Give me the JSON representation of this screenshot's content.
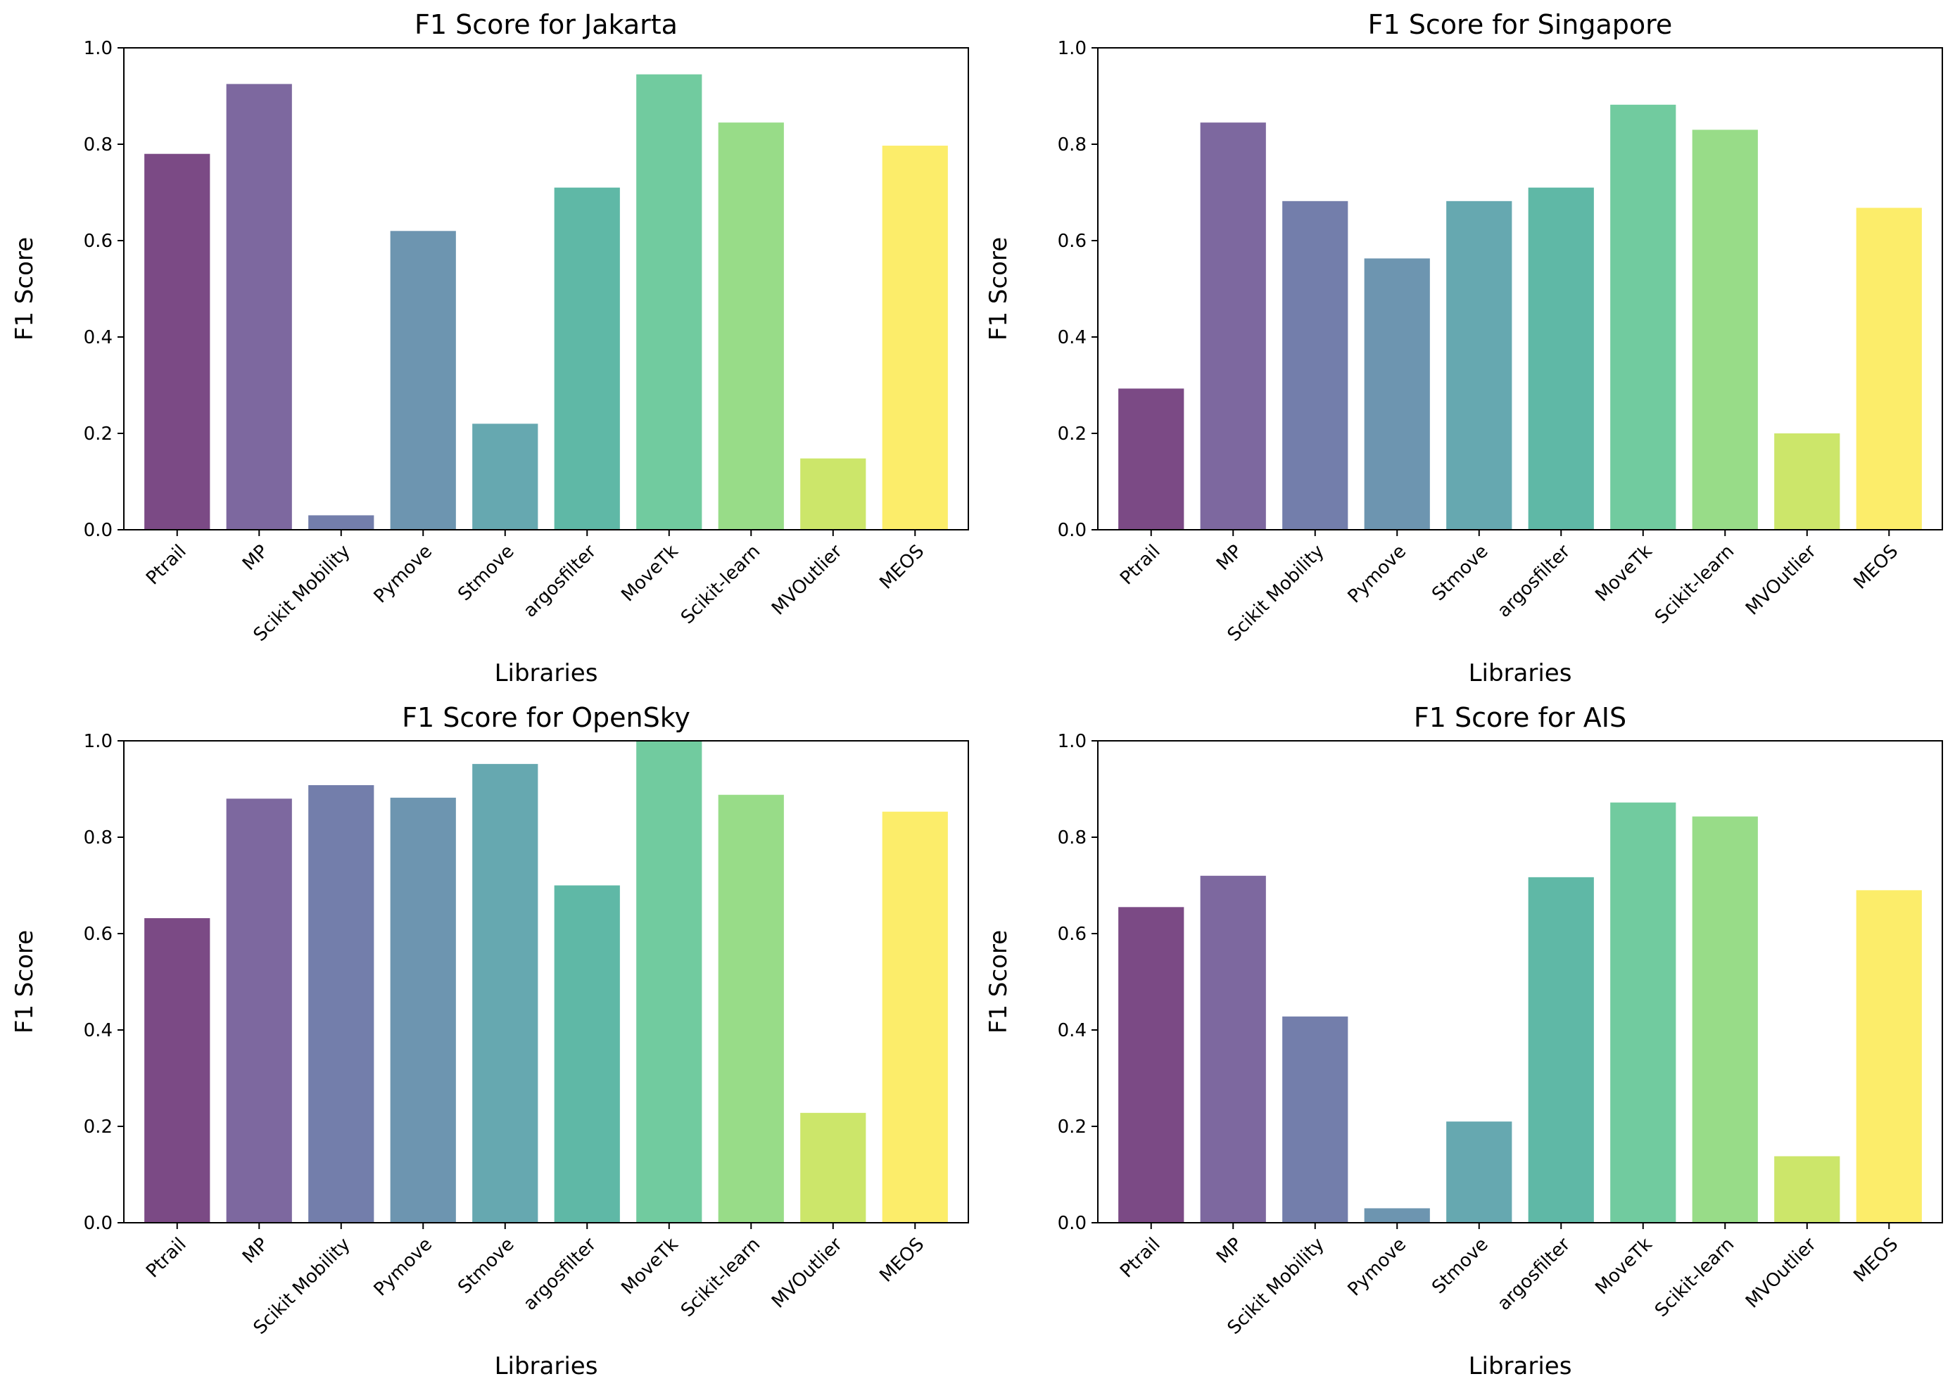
{
  "chart_data": [
    {
      "type": "bar",
      "title": "F1 Score for Jakarta",
      "xlabel": "Libraries",
      "ylabel": "F1 Score",
      "ylim": [
        0,
        1
      ],
      "yticks": [
        "0.0",
        "0.2",
        "0.4",
        "0.6",
        "0.8",
        "1.0"
      ],
      "categories": [
        "Ptrail",
        "MP",
        "Scikit Mobility",
        "Pymove",
        "Stmove",
        "argosfilter",
        "MoveTk",
        "Scikit-learn",
        "MVOutlier",
        "MEOS"
      ],
      "values": [
        0.78,
        0.925,
        0.03,
        0.62,
        0.22,
        0.71,
        0.945,
        0.845,
        0.148,
        0.797
      ]
    },
    {
      "type": "bar",
      "title": "F1 Score for Singapore",
      "xlabel": "Libraries",
      "ylabel": "F1 Score",
      "ylim": [
        0,
        1
      ],
      "yticks": [
        "0.0",
        "0.2",
        "0.4",
        "0.6",
        "0.8",
        "1.0"
      ],
      "categories": [
        "Ptrail",
        "MP",
        "Scikit Mobility",
        "Pymove",
        "Stmove",
        "argosfilter",
        "MoveTk",
        "Scikit-learn",
        "MVOutlier",
        "MEOS"
      ],
      "values": [
        0.293,
        0.845,
        0.682,
        0.563,
        0.682,
        0.71,
        0.882,
        0.83,
        0.2,
        0.668
      ]
    },
    {
      "type": "bar",
      "title": "F1 Score for OpenSky",
      "xlabel": "Libraries",
      "ylabel": "F1 Score",
      "ylim": [
        0,
        1
      ],
      "yticks": [
        "0.0",
        "0.2",
        "0.4",
        "0.6",
        "0.8",
        "1.0"
      ],
      "categories": [
        "Ptrail",
        "MP",
        "Scikit Mobility",
        "Pymove",
        "Stmove",
        "argosfilter",
        "MoveTk",
        "Scikit-learn",
        "MVOutlier",
        "MEOS"
      ],
      "values": [
        0.632,
        0.88,
        0.908,
        0.882,
        0.952,
        0.7,
        1.0,
        0.888,
        0.228,
        0.853
      ]
    },
    {
      "type": "bar",
      "title": "F1 Score for AIS",
      "xlabel": "Libraries",
      "ylabel": "F1 Score",
      "ylim": [
        0,
        1
      ],
      "yticks": [
        "0.0",
        "0.2",
        "0.4",
        "0.6",
        "0.8",
        "1.0"
      ],
      "categories": [
        "Ptrail",
        "MP",
        "Scikit Mobility",
        "Pymove",
        "Stmove",
        "argosfilter",
        "MoveTk",
        "Scikit-learn",
        "MVOutlier",
        "MEOS"
      ],
      "values": [
        0.655,
        0.72,
        0.428,
        0.03,
        0.21,
        0.717,
        0.872,
        0.843,
        0.138,
        0.69
      ]
    }
  ],
  "bar_colors": [
    "#7b4a85",
    "#7d689f",
    "#737eab",
    "#6d95b0",
    "#66a8b0",
    "#5fb8a6",
    "#71cb9f",
    "#98dc88",
    "#cce66a",
    "#fced6a"
  ]
}
